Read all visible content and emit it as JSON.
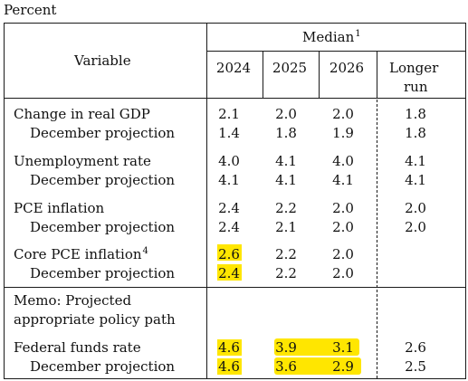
{
  "unit_label": "Percent",
  "header": {
    "variable_label": "Variable",
    "median_label": "Median",
    "median_footnote": "1",
    "years": [
      "2024",
      "2025",
      "2026"
    ],
    "longer_run_line1": "Longer",
    "longer_run_line2": "run"
  },
  "rows": {
    "gdp": {
      "label": "Change in real GDP",
      "values": [
        "2.1",
        "2.0",
        "2.0",
        "1.8"
      ]
    },
    "gdp_dec": {
      "label": "December projection",
      "values": [
        "1.4",
        "1.8",
        "1.9",
        "1.8"
      ]
    },
    "unemp": {
      "label": "Unemployment rate",
      "values": [
        "4.0",
        "4.1",
        "4.0",
        "4.1"
      ]
    },
    "unemp_dec": {
      "label": "December projection",
      "values": [
        "4.1",
        "4.1",
        "4.1",
        "4.1"
      ]
    },
    "pce": {
      "label": "PCE inflation",
      "values": [
        "2.4",
        "2.2",
        "2.0",
        "2.0"
      ]
    },
    "pce_dec": {
      "label": "December projection",
      "values": [
        "2.4",
        "2.1",
        "2.0",
        "2.0"
      ]
    },
    "core": {
      "label": "Core PCE inflation",
      "footnote": "4",
      "values": [
        "2.6",
        "2.2",
        "2.0"
      ]
    },
    "core_dec": {
      "label": "December projection",
      "values": [
        "2.4",
        "2.2",
        "2.0"
      ]
    },
    "memo_line1": "Memo: Projected",
    "memo_line2": "appropriate policy path",
    "ffr": {
      "label": "Federal funds rate",
      "values": [
        "4.6",
        "3.9",
        "3.1",
        "2.6"
      ]
    },
    "ffr_dec": {
      "label": "December projection",
      "values": [
        "4.6",
        "3.6",
        "2.9",
        "2.5"
      ]
    }
  },
  "highlight_color": "#ffe600"
}
